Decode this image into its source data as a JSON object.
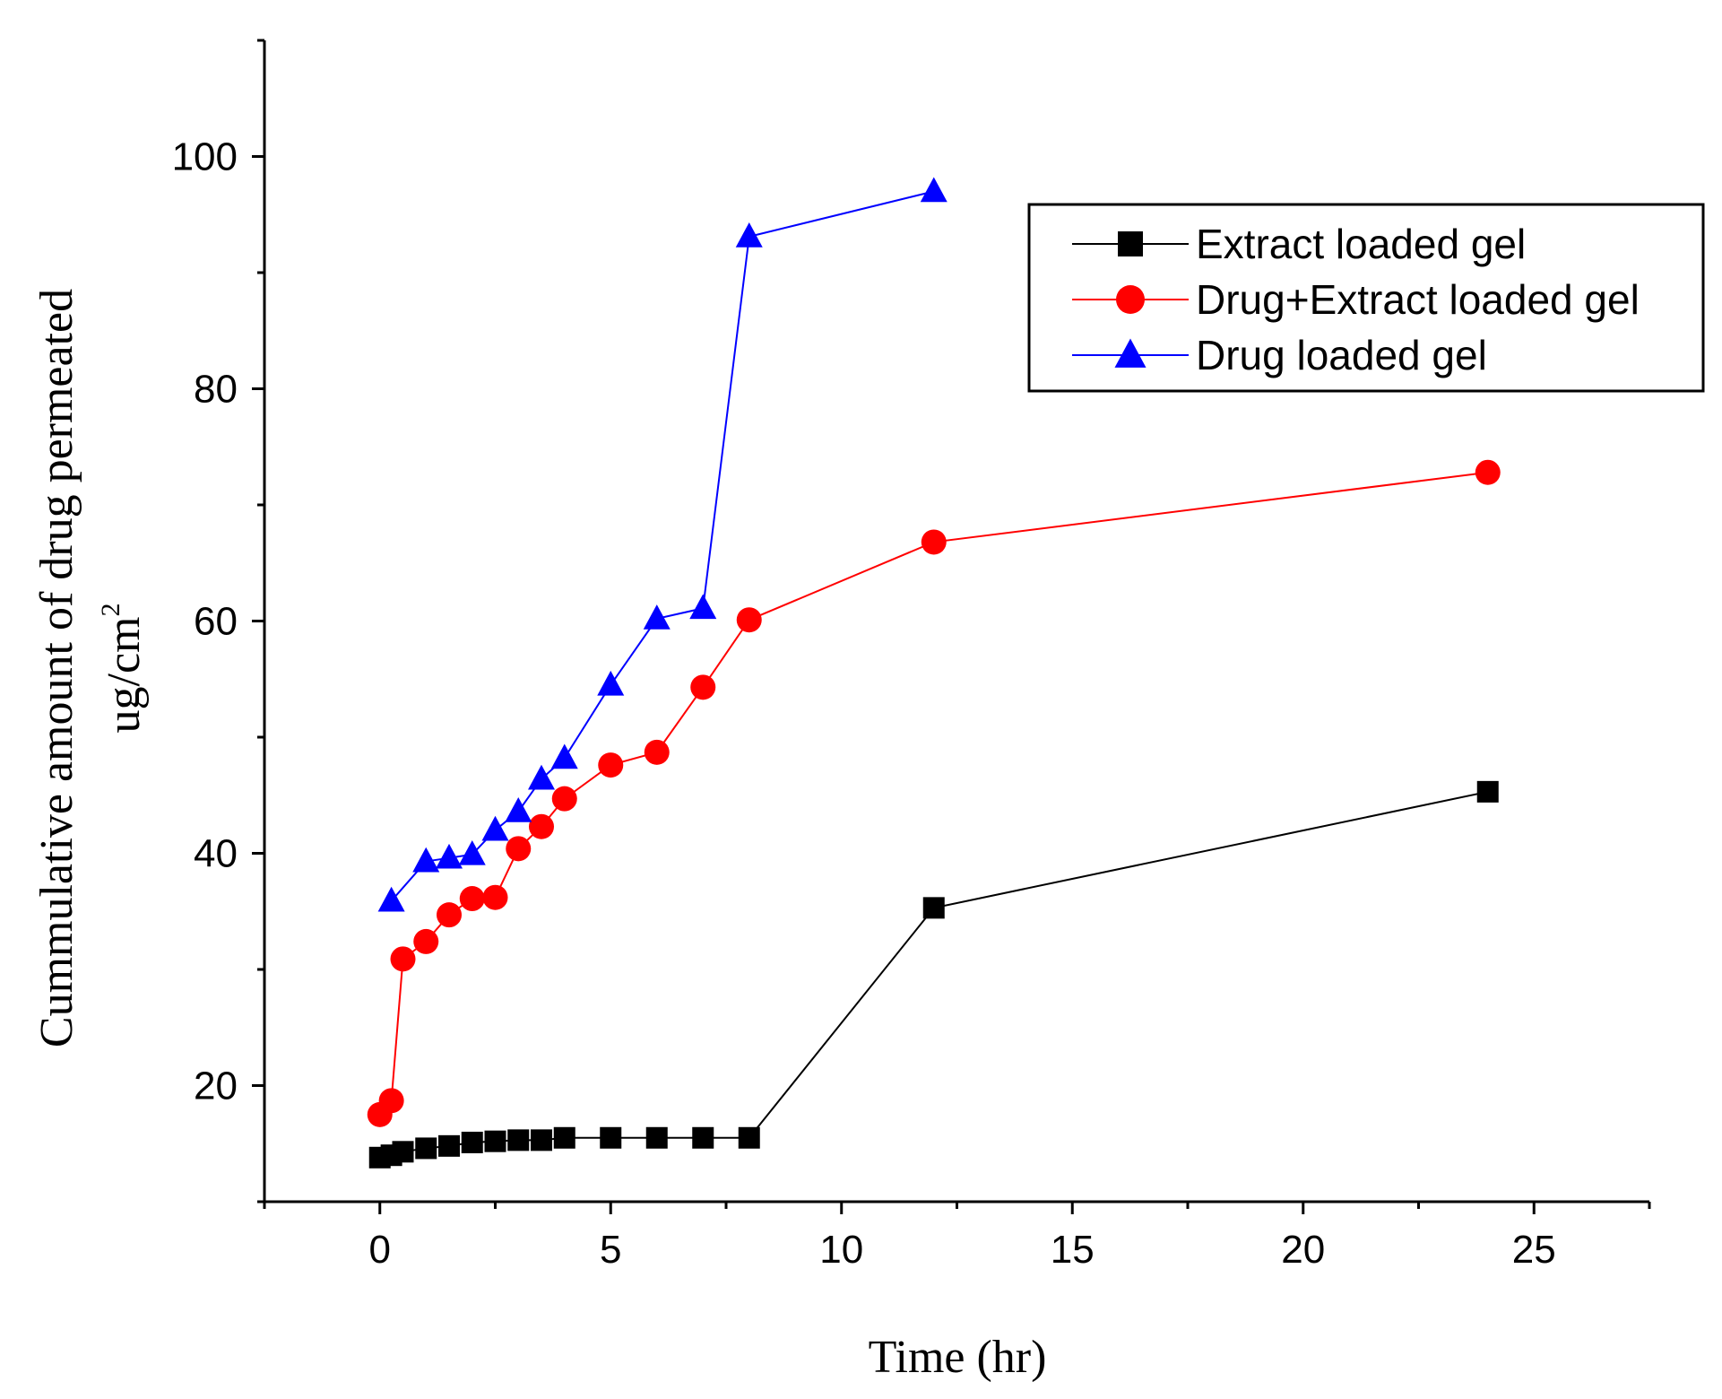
{
  "chart_data": {
    "type": "line",
    "title": "",
    "xlabel": "Time (hr)",
    "ylabel_line1": "Cummulative amount of drug permeated",
    "ylabel_line2_base": "ug/cm",
    "ylabel_line2_sup": "2",
    "xlim": [
      -2.5,
      27.5
    ],
    "ylim": [
      10,
      110
    ],
    "x_ticks": [
      0,
      5,
      10,
      15,
      20,
      25
    ],
    "y_ticks": [
      20,
      40,
      60,
      80,
      100
    ],
    "grid": false,
    "legend_position": "top-right",
    "series": [
      {
        "name": "Extract loaded gel",
        "color": "#000000",
        "marker": "square",
        "x": [
          0,
          0.25,
          0.5,
          1,
          1.5,
          2,
          2.5,
          3,
          3.5,
          4,
          5,
          6,
          7,
          8,
          12,
          24
        ],
        "y": [
          13.8,
          14.0,
          14.3,
          14.6,
          14.8,
          15.1,
          15.2,
          15.3,
          15.3,
          15.5,
          15.5,
          15.5,
          15.5,
          15.5,
          35.3,
          45.3
        ]
      },
      {
        "name": "Drug+Extract loaded gel",
        "color": "#ff0000",
        "marker": "circle",
        "x": [
          0,
          0.25,
          0.5,
          1,
          1.5,
          2,
          2.5,
          3,
          3.5,
          4,
          5,
          6,
          7,
          8,
          12,
          24
        ],
        "y": [
          17.5,
          18.7,
          30.9,
          32.4,
          34.7,
          36.1,
          36.2,
          40.4,
          42.3,
          44.7,
          47.6,
          48.7,
          54.3,
          60.1,
          66.8,
          72.8
        ]
      },
      {
        "name": "Drug loaded gel",
        "color": "#0000ff",
        "marker": "triangle",
        "x": [
          0.25,
          1,
          1.5,
          2,
          2.5,
          3,
          3.5,
          4,
          5,
          6,
          7,
          8,
          12
        ],
        "y": [
          35.9,
          39.3,
          39.6,
          39.9,
          42.0,
          43.6,
          46.4,
          48.2,
          54.5,
          60.2,
          61.1,
          93.1,
          97.0
        ]
      }
    ]
  }
}
